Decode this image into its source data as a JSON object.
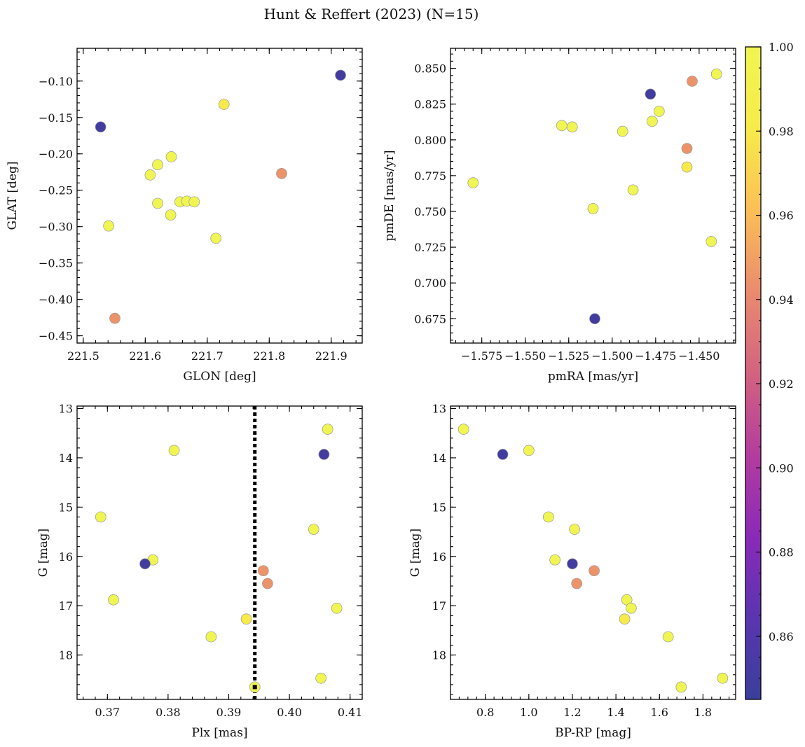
{
  "figure": {
    "title": "Hunt & Reffert (2023) (N=15)",
    "n_stars": 15
  },
  "colorbar": {
    "min": 0.845,
    "max": 1.0,
    "ticks": [
      0.86,
      0.88,
      0.9,
      0.92,
      0.94,
      0.96,
      0.98,
      1.0
    ],
    "tick_labels": [
      "0.86",
      "0.88",
      "0.90",
      "0.92",
      "0.94",
      "0.96",
      "0.98",
      "1.00"
    ],
    "colormap": "plasma",
    "stops": [
      "#3a3f9b",
      "#5a35b0",
      "#8a2ab8",
      "#b43c9e",
      "#d26380",
      "#ea8b6e",
      "#fbbf56",
      "#f7eb4a",
      "#f0f552"
    ]
  },
  "chart_data": [
    {
      "id": "glon-glat",
      "type": "scatter",
      "xlabel": "GLON [deg]",
      "ylabel": "GLAT [deg]",
      "xlim": [
        221.49,
        221.95
      ],
      "ylim": [
        -0.46,
        -0.055
      ],
      "y_inverted": false,
      "xticks": [
        221.5,
        221.6,
        221.7,
        221.8,
        221.9
      ],
      "xtick_labels": [
        "221.5",
        "221.6",
        "221.7",
        "221.8",
        "221.9"
      ],
      "yticks": [
        -0.45,
        -0.4,
        -0.35,
        -0.3,
        -0.25,
        -0.2,
        -0.15,
        -0.1
      ],
      "ytick_labels": [
        "−0.45",
        "−0.40",
        "−0.35",
        "−0.30",
        "−0.25",
        "−0.20",
        "−0.15",
        "−0.10"
      ],
      "points": [
        {
          "x": 221.915,
          "y": -0.092,
          "prob": 0.85
        },
        {
          "x": 221.528,
          "y": -0.163,
          "prob": 0.85
        },
        {
          "x": 221.727,
          "y": -0.132,
          "prob": 0.98
        },
        {
          "x": 221.82,
          "y": -0.227,
          "prob": 0.945
        },
        {
          "x": 221.551,
          "y": -0.426,
          "prob": 0.945
        },
        {
          "x": 221.642,
          "y": -0.204,
          "prob": 1.0
        },
        {
          "x": 221.62,
          "y": -0.215,
          "prob": 1.0
        },
        {
          "x": 221.608,
          "y": -0.229,
          "prob": 1.0
        },
        {
          "x": 221.62,
          "y": -0.268,
          "prob": 1.0
        },
        {
          "x": 221.641,
          "y": -0.284,
          "prob": 1.0
        },
        {
          "x": 221.656,
          "y": -0.266,
          "prob": 1.0
        },
        {
          "x": 221.667,
          "y": -0.265,
          "prob": 1.0
        },
        {
          "x": 221.679,
          "y": -0.266,
          "prob": 1.0
        },
        {
          "x": 221.541,
          "y": -0.299,
          "prob": 1.0
        },
        {
          "x": 221.714,
          "y": -0.316,
          "prob": 1.0
        }
      ]
    },
    {
      "id": "pmra-pmde",
      "type": "scatter",
      "xlabel": "pmRA [mas/yr]",
      "ylabel": "pmDE [mas/yr]",
      "xlim": [
        -1.593,
        -1.429
      ],
      "ylim": [
        0.658,
        0.864
      ],
      "y_inverted": false,
      "xticks": [
        -1.575,
        -1.55,
        -1.525,
        -1.5,
        -1.475,
        -1.45
      ],
      "xtick_labels": [
        "−1.575",
        "−1.550",
        "−1.525",
        "−1.500",
        "−1.475",
        "−1.450"
      ],
      "yticks": [
        0.675,
        0.7,
        0.725,
        0.75,
        0.775,
        0.8,
        0.825,
        0.85
      ],
      "ytick_labels": [
        "0.675",
        "0.700",
        "0.725",
        "0.750",
        "0.775",
        "0.800",
        "0.825",
        "0.850"
      ],
      "points": [
        {
          "x": -1.478,
          "y": 0.832,
          "prob": 0.85
        },
        {
          "x": -1.51,
          "y": 0.675,
          "prob": 0.85
        },
        {
          "x": -1.454,
          "y": 0.841,
          "prob": 0.945
        },
        {
          "x": -1.457,
          "y": 0.794,
          "prob": 0.945
        },
        {
          "x": -1.457,
          "y": 0.781,
          "prob": 0.98
        },
        {
          "x": -1.44,
          "y": 0.846,
          "prob": 1.0
        },
        {
          "x": -1.473,
          "y": 0.82,
          "prob": 1.0
        },
        {
          "x": -1.477,
          "y": 0.813,
          "prob": 1.0
        },
        {
          "x": -1.529,
          "y": 0.81,
          "prob": 1.0
        },
        {
          "x": -1.523,
          "y": 0.809,
          "prob": 1.0
        },
        {
          "x": -1.494,
          "y": 0.806,
          "prob": 1.0
        },
        {
          "x": -1.58,
          "y": 0.77,
          "prob": 1.0
        },
        {
          "x": -1.488,
          "y": 0.765,
          "prob": 1.0
        },
        {
          "x": -1.511,
          "y": 0.752,
          "prob": 1.0
        },
        {
          "x": -1.443,
          "y": 0.729,
          "prob": 1.0
        }
      ]
    },
    {
      "id": "plx-g",
      "type": "scatter",
      "xlabel": "Plx [mas]",
      "ylabel": "G [mag]",
      "xlim": [
        0.365,
        0.412
      ],
      "ylim": [
        12.95,
        18.9
      ],
      "y_inverted": true,
      "vline": 0.3943,
      "marked_point": {
        "x": 0.3943,
        "y": 18.65
      },
      "xticks": [
        0.37,
        0.38,
        0.39,
        0.4,
        0.41
      ],
      "xtick_labels": [
        "0.37",
        "0.38",
        "0.39",
        "0.40",
        "0.41"
      ],
      "yticks": [
        13,
        14,
        15,
        16,
        17,
        18
      ],
      "ytick_labels": [
        "13",
        "14",
        "15",
        "16",
        "17",
        "18"
      ],
      "points": [
        {
          "x": 0.4057,
          "y": 13.93,
          "prob": 0.85
        },
        {
          "x": 0.3762,
          "y": 16.15,
          "prob": 0.85
        },
        {
          "x": 0.3957,
          "y": 16.29,
          "prob": 0.945
        },
        {
          "x": 0.3964,
          "y": 16.55,
          "prob": 0.945
        },
        {
          "x": 0.3929,
          "y": 17.27,
          "prob": 0.98
        },
        {
          "x": 0.4063,
          "y": 13.42,
          "prob": 1.0
        },
        {
          "x": 0.381,
          "y": 13.85,
          "prob": 1.0
        },
        {
          "x": 0.3689,
          "y": 15.2,
          "prob": 1.0
        },
        {
          "x": 0.404,
          "y": 15.45,
          "prob": 1.0
        },
        {
          "x": 0.3775,
          "y": 16.07,
          "prob": 1.0
        },
        {
          "x": 0.371,
          "y": 16.88,
          "prob": 1.0
        },
        {
          "x": 0.4078,
          "y": 17.05,
          "prob": 1.0
        },
        {
          "x": 0.3871,
          "y": 17.63,
          "prob": 1.0
        },
        {
          "x": 0.4052,
          "y": 18.47,
          "prob": 1.0
        },
        {
          "x": 0.3943,
          "y": 18.65,
          "prob": 1.0
        }
      ]
    },
    {
      "id": "bprp-g",
      "type": "scatter",
      "xlabel": "BP-RP [mag]",
      "ylabel": "G [mag]",
      "xlim": [
        0.64,
        1.95
      ],
      "ylim": [
        12.95,
        18.9
      ],
      "y_inverted": true,
      "xticks": [
        0.8,
        1.0,
        1.2,
        1.4,
        1.6,
        1.8
      ],
      "xtick_labels": [
        "0.8",
        "1.0",
        "1.2",
        "1.4",
        "1.6",
        "1.8"
      ],
      "yticks": [
        13,
        14,
        15,
        16,
        17,
        18
      ],
      "ytick_labels": [
        "13",
        "14",
        "15",
        "16",
        "17",
        "18"
      ],
      "points": [
        {
          "x": 0.88,
          "y": 13.93,
          "prob": 0.85
        },
        {
          "x": 1.2,
          "y": 16.15,
          "prob": 0.85
        },
        {
          "x": 1.3,
          "y": 16.29,
          "prob": 0.945
        },
        {
          "x": 1.22,
          "y": 16.55,
          "prob": 0.945
        },
        {
          "x": 1.44,
          "y": 17.27,
          "prob": 0.98
        },
        {
          "x": 0.7,
          "y": 13.42,
          "prob": 1.0
        },
        {
          "x": 1.0,
          "y": 13.85,
          "prob": 1.0
        },
        {
          "x": 1.09,
          "y": 15.2,
          "prob": 1.0
        },
        {
          "x": 1.21,
          "y": 15.45,
          "prob": 1.0
        },
        {
          "x": 1.12,
          "y": 16.07,
          "prob": 1.0
        },
        {
          "x": 1.45,
          "y": 16.88,
          "prob": 1.0
        },
        {
          "x": 1.47,
          "y": 17.05,
          "prob": 1.0
        },
        {
          "x": 1.64,
          "y": 17.63,
          "prob": 1.0
        },
        {
          "x": 1.89,
          "y": 18.47,
          "prob": 1.0
        },
        {
          "x": 1.7,
          "y": 18.65,
          "prob": 1.0
        }
      ]
    }
  ]
}
